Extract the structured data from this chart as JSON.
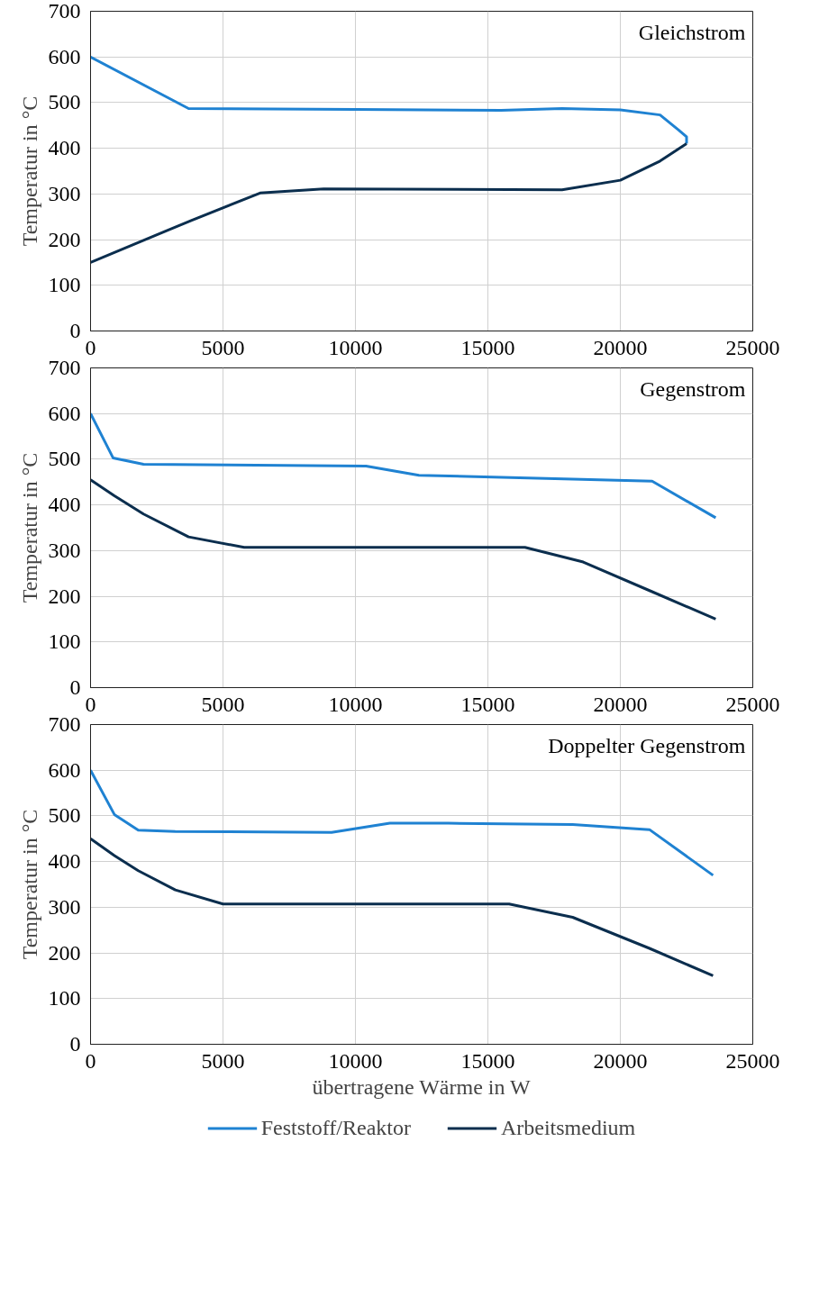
{
  "chart_data": [
    {
      "type": "line",
      "ylabel": "Temperatur in °C",
      "annotations": [
        "Gleichstrom"
      ],
      "xlim": [
        0,
        25000
      ],
      "ylim": [
        0,
        700
      ],
      "xticks": [
        0,
        5000,
        10000,
        15000,
        20000,
        25000
      ],
      "yticks": [
        0,
        100,
        200,
        300,
        400,
        500,
        600,
        700
      ],
      "grid": true,
      "legend": false,
      "marker": "none",
      "line_style": "solid",
      "series": [
        {
          "color": "#1f82d2",
          "x": [
            0,
            3700,
            10000,
            15500,
            17800,
            20000,
            21500,
            22200,
            22500,
            22500
          ],
          "values": [
            600,
            487,
            485,
            483,
            487,
            484,
            473,
            440,
            425,
            410
          ]
        },
        {
          "color": "#0b2e4e",
          "x": [
            0,
            3800,
            6400,
            8800,
            17800,
            20000,
            21500,
            22500
          ],
          "values": [
            150,
            242,
            302,
            311,
            309,
            330,
            372,
            410
          ]
        }
      ]
    },
    {
      "type": "line",
      "ylabel": "Temperatur in °C",
      "annotations": [
        "Gegenstrom"
      ],
      "xlim": [
        0,
        25000
      ],
      "ylim": [
        0,
        700
      ],
      "xticks": [
        0,
        5000,
        10000,
        15000,
        20000,
        25000
      ],
      "yticks": [
        0,
        100,
        200,
        300,
        400,
        500,
        600,
        700
      ],
      "grid": true,
      "legend": false,
      "marker": "none",
      "line_style": "solid",
      "series": [
        {
          "color": "#1f82d2",
          "x": [
            0,
            850,
            2000,
            10400,
            12400,
            21200,
            23600
          ],
          "values": [
            600,
            503,
            489,
            485,
            465,
            452,
            372
          ]
        },
        {
          "color": "#0b2e4e",
          "x": [
            0,
            900,
            2000,
            3700,
            5800,
            16400,
            18600,
            21200,
            23600
          ],
          "values": [
            455,
            420,
            380,
            330,
            307,
            307,
            275,
            210,
            150
          ]
        }
      ]
    },
    {
      "type": "line",
      "ylabel": "Temperatur in °C",
      "xlabel": "übertragene Wärme in W",
      "annotations": [
        "Doppelter Gegenstrom"
      ],
      "xlim": [
        0,
        25000
      ],
      "ylim": [
        0,
        700
      ],
      "xticks": [
        0,
        5000,
        10000,
        15000,
        20000,
        25000
      ],
      "yticks": [
        0,
        100,
        200,
        300,
        400,
        500,
        600,
        700
      ],
      "grid": true,
      "legend": "bottom",
      "marker": "none",
      "line_style": "solid",
      "series": [
        {
          "name": "Feststoff/Reaktor",
          "color": "#1f82d2",
          "x": [
            0,
            900,
            1800,
            3200,
            9100,
            11300,
            13500,
            18200,
            21100,
            23500
          ],
          "values": [
            600,
            503,
            469,
            466,
            464,
            484,
            484,
            481,
            470,
            370
          ]
        },
        {
          "name": "Arbeitsmedium",
          "color": "#0b2e4e",
          "x": [
            0,
            900,
            1800,
            3200,
            5000,
            15800,
            18200,
            21100,
            23500
          ],
          "values": [
            450,
            413,
            380,
            338,
            307,
            307,
            278,
            210,
            150
          ]
        }
      ]
    }
  ]
}
